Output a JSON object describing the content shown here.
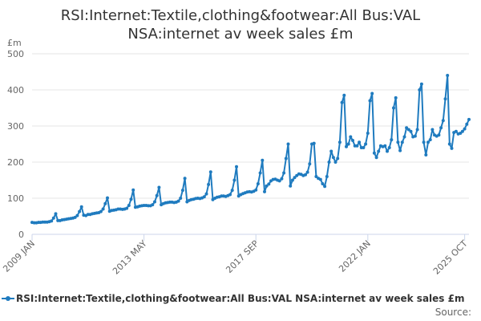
{
  "title_line1": "RSI:Internet:Textile,clothing&footwear:All Bus:VAL",
  "title_line2": "NSA:internet av week sales £m",
  "unit": "£m",
  "source": "Source:",
  "colors": {
    "series": "#1f7bbf",
    "axis": "#ccd6eb",
    "grid": "#e6e6e6",
    "text": "#666666"
  },
  "chart_data": {
    "type": "line",
    "ylabel": "£m",
    "ylim": [
      0,
      500
    ],
    "yticks": [
      0,
      100,
      200,
      300,
      400,
      500
    ],
    "xticks": [
      {
        "label": "2009 JAN",
        "year": 2009,
        "month": 1
      },
      {
        "label": "2013 MAY",
        "year": 2013,
        "month": 5
      },
      {
        "label": "2017 SEP",
        "year": 2017,
        "month": 9
      },
      {
        "label": "2022 JAN",
        "year": 2022,
        "month": 1
      },
      {
        "label": "2025 OCT",
        "year": 2025,
        "month": 10
      }
    ],
    "x_start": "2009 JAN",
    "grid": "horizontal",
    "legend": "bottom",
    "series": [
      {
        "name": "RSI:Internet:Textile,clothing&footwear:All Bus:VAL NSA:internet av week sales £m",
        "values": [
          33,
          32,
          32,
          33,
          33,
          34,
          34,
          34,
          35,
          37,
          45,
          57,
          38,
          38,
          40,
          41,
          42,
          43,
          44,
          45,
          47,
          52,
          63,
          76,
          53,
          52,
          55,
          55,
          57,
          58,
          59,
          60,
          63,
          70,
          85,
          101,
          64,
          66,
          67,
          68,
          70,
          70,
          69,
          70,
          72,
          80,
          97,
          123,
          75,
          76,
          78,
          79,
          80,
          80,
          79,
          79,
          82,
          90,
          107,
          130,
          82,
          85,
          87,
          88,
          89,
          89,
          88,
          89,
          92,
          100,
          122,
          155,
          90,
          94,
          96,
          97,
          99,
          100,
          99,
          101,
          104,
          112,
          138,
          173,
          96,
          100,
          103,
          104,
          106,
          106,
          105,
          107,
          110,
          122,
          150,
          187,
          106,
          110,
          113,
          115,
          117,
          118,
          117,
          119,
          123,
          140,
          170,
          205,
          118,
          134,
          139,
          148,
          152,
          153,
          150,
          148,
          154,
          170,
          210,
          250,
          134,
          150,
          157,
          163,
          167,
          166,
          163,
          165,
          172,
          195,
          250,
          252,
          160,
          155,
          152,
          140,
          133,
          160,
          200,
          230,
          213,
          200,
          210,
          255,
          365,
          385,
          243,
          250,
          270,
          260,
          245,
          245,
          255,
          240,
          240,
          250,
          280,
          370,
          390,
          225,
          213,
          230,
          245,
          243,
          245,
          230,
          240,
          262,
          350,
          378,
          255,
          232,
          255,
          270,
          295,
          290,
          285,
          270,
          272,
          290,
          400,
          416,
          255,
          220,
          255,
          262,
          290,
          275,
          272,
          275,
          295,
          315,
          375,
          440,
          250,
          238,
          282,
          285,
          278,
          280,
          285,
          292,
          305,
          318
        ]
      }
    ]
  }
}
